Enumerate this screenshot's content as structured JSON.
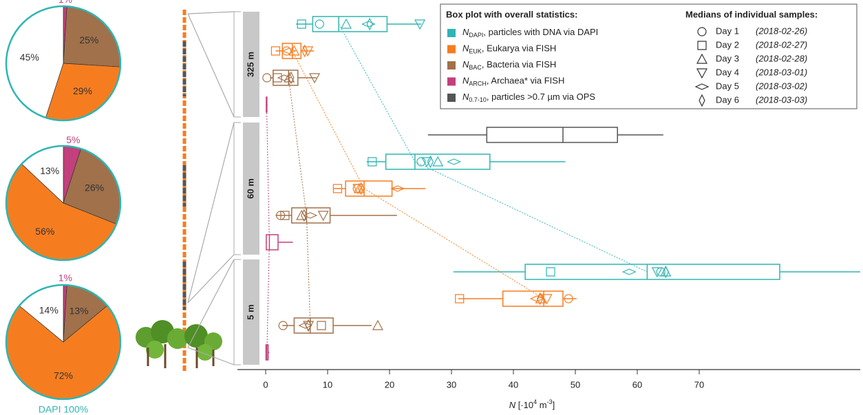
{
  "chart_data": [
    {
      "type": "pie",
      "values": [
        1,
        25,
        29,
        45
      ],
      "value_labels": [
        "1%",
        "25%",
        "29%",
        "45%"
      ],
      "colors": [
        "#c2407c",
        "#a0714b",
        "#f57d20",
        "#ffffff"
      ],
      "outline": "#2fb5b3"
    },
    {
      "type": "pie",
      "values": [
        5,
        26,
        56,
        13
      ],
      "value_labels": [
        "5%",
        "26%",
        "56%",
        "13%"
      ],
      "colors": [
        "#c2407c",
        "#a0714b",
        "#f57d20",
        "#ffffff"
      ],
      "outline": "#2fb5b3"
    },
    {
      "type": "pie",
      "values": [
        1,
        13,
        72,
        14
      ],
      "value_labels": [
        "1%",
        "13%",
        "72%",
        "14%"
      ],
      "colors": [
        "#c2407c",
        "#a0714b",
        "#f57d20",
        "#ffffff"
      ],
      "outline": "#2fb5b3",
      "caption": "DAPI 100%"
    },
    {
      "type": "box",
      "legend_title": "Box plot with overall statistics:",
      "days_title": "Medians of individual samples:",
      "groups": [
        "325 m",
        "60 m",
        "5 m"
      ],
      "xlim": [
        -4.56,
        96
      ],
      "xticks": [
        0,
        10,
        20,
        30,
        40,
        50,
        60,
        70
      ],
      "xlabel": {
        "symbol": "N",
        "open": " [·10",
        "exp1": "4",
        "unit": " m",
        "exp2": "-3",
        "close": "]"
      },
      "days": [
        {
          "name": "Day 1",
          "date": "(2018-02-26)",
          "marker": "circle"
        },
        {
          "name": "Day 2",
          "date": "(2018-02-27)",
          "marker": "square"
        },
        {
          "name": "Day 3",
          "date": "(2018-02-28)",
          "marker": "triangle-up"
        },
        {
          "name": "Day 4",
          "date": "(2018-03-01)",
          "marker": "triangle-down"
        },
        {
          "name": "Day 5",
          "date": "(2018-03-02)",
          "marker": "diamond-wide"
        },
        {
          "name": "Day 6",
          "date": "(2018-03-03)",
          "marker": "diamond-tall"
        }
      ],
      "series": [
        {
          "symbol": "N",
          "subscript": "DAPI",
          "name": ", particles with DNA via DAPI",
          "color": "#2fb5b3",
          "boxes": [
            {
              "whislo": 4.9,
              "q1": 7.6,
              "med": 11.8,
              "q3": 19.6,
              "whishi": 25.1,
              "day_medians": [
                8.7,
                5.8,
                13.0,
                24.9,
                16.6,
                16.8
              ]
            },
            {
              "whislo": 16.3,
              "q1": 19.4,
              "med": 24.1,
              "q3": 36.2,
              "whishi": 48.4,
              "day_medians": [
                25.1,
                17.2,
                27.8,
                26.0,
                30.4,
                26.6
              ]
            },
            {
              "whislo": 30.3,
              "q1": 41.9,
              "med": 61.6,
              "q3": 83.0,
              "whishi": 96,
              "day_medians": [
                63.8,
                46.0,
                64.6,
                63.2,
                58.7,
                64.6
              ]
            }
          ]
        },
        {
          "symbol": "N",
          "subscript": "EUK",
          "name": ", Eukarya via FISH",
          "color": "#f57d20",
          "boxes": [
            {
              "whislo": 1.6,
              "q1": 2.7,
              "med": 4.3,
              "q3": 5.7,
              "whishi": 7.8,
              "day_medians": [
                3.4,
                1.6,
                4.6,
                6.8,
                3.8,
                6.3
              ]
            },
            {
              "whislo": 10.9,
              "q1": 12.9,
              "med": 15.9,
              "q3": 20.4,
              "whishi": 25.8,
              "day_medians": [
                14.8,
                11.6,
                15.1,
                14.9,
                21.3,
                15.4
              ]
            },
            {
              "whislo": 31.1,
              "q1": 38.3,
              "med": 44.9,
              "q3": 48.0,
              "whishi": 50.2,
              "day_medians": [
                48.9,
                31.3,
                44.4,
                45.4,
                43.8,
                44.3
              ]
            }
          ]
        },
        {
          "symbol": "N",
          "subscript": "BAC",
          "name": ", Bacteria via FISH",
          "color": "#a0714b",
          "boxes": [
            {
              "whislo": 0.7,
              "q1": 1.2,
              "med": 3.7,
              "q3": 5.2,
              "whishi": 8.2,
              "day_medians": [
                0.2,
                1.9,
                3.8,
                7.9,
                3.0,
                4.1
              ]
            },
            {
              "whislo": 1.6,
              "q1": 4.2,
              "med": 6.6,
              "q3": 10.4,
              "whishi": 21.2,
              "day_medians": [
                2.4,
                3.1,
                5.8,
                9.3,
                7.2,
                6.2
              ]
            },
            {
              "whislo": 2.7,
              "q1": 4.6,
              "med": 7.2,
              "q3": 10.9,
              "whishi": 17.1,
              "day_medians": [
                2.8,
                9.0,
                18.1,
                6.9,
                6.4,
                6.9
              ]
            }
          ]
        },
        {
          "symbol": "N",
          "subscript": "ARCH",
          "name": ", Archaea* via FISH",
          "color": "#c2407c",
          "boxes": [
            {
              "whislo": 0.05,
              "q1": 0.1,
              "med": 0.15,
              "q3": 0.2,
              "whishi": 0.3,
              "day_medians": [
                null,
                null,
                null,
                null,
                null,
                null
              ]
            },
            {
              "whislo": 0.0,
              "q1": 0.1,
              "med": 0.6,
              "q3": 2.0,
              "whishi": 4.4,
              "day_medians": [
                null,
                null,
                null,
                null,
                null,
                null
              ]
            },
            {
              "whislo": 0.0,
              "q1": 0.05,
              "med": 0.2,
              "q3": 0.4,
              "whishi": 0.6,
              "day_medians": [
                null,
                null,
                null,
                null,
                null,
                null
              ]
            }
          ]
        },
        {
          "symbol": "N",
          "subscript": "0.7-10",
          "name": ", particles >0.7 µm via OPS",
          "color": "#555555",
          "boxes": [
            null,
            {
              "whislo": 26.2,
              "q1": 35.7,
              "med": 48.0,
              "q3": 56.8,
              "whishi": 64.2,
              "day_medians": [
                null,
                null,
                null,
                null,
                null,
                null
              ]
            },
            null
          ]
        }
      ]
    }
  ]
}
